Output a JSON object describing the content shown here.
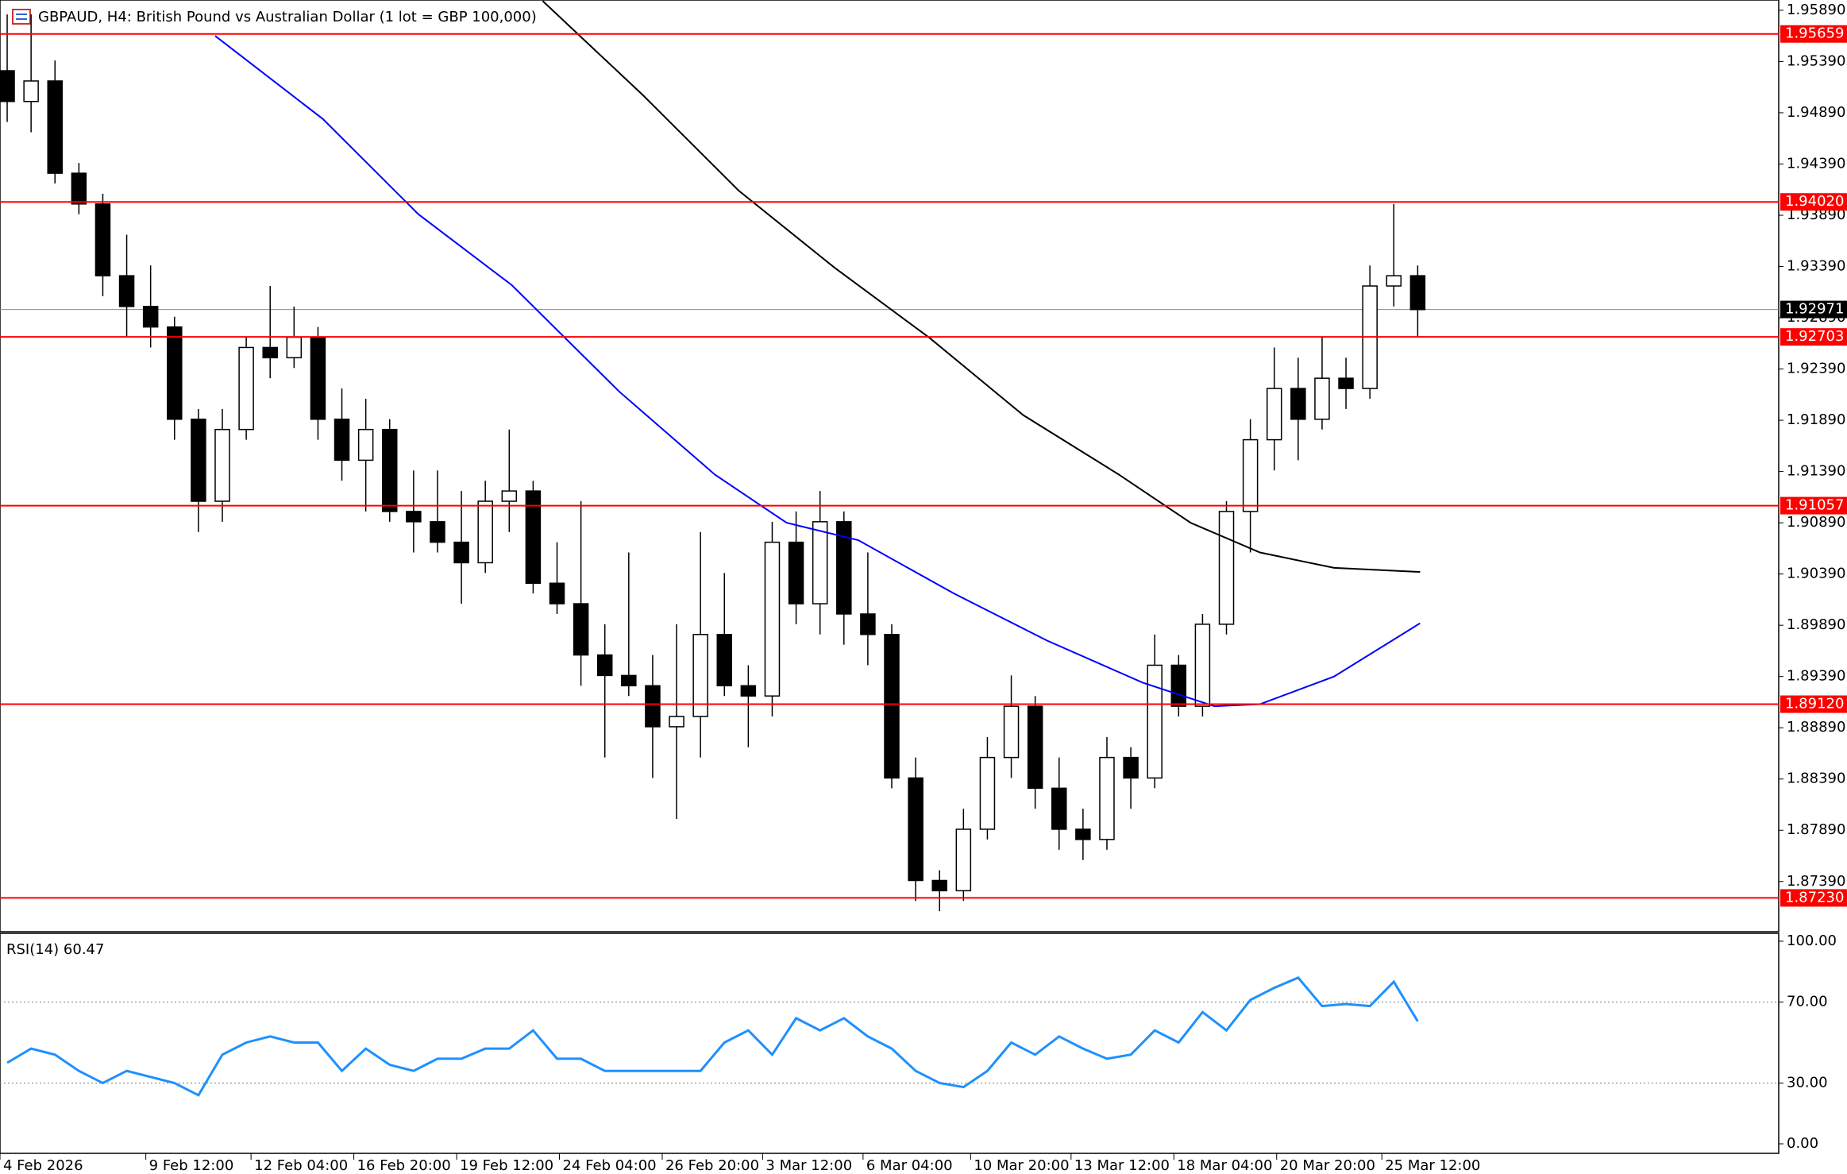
{
  "header": "GBPAUD, H4:  British Pound vs Australian Dollar (1 lot = GBP 100,000)",
  "chart_data": [
    {
      "type": "candlestick",
      "xlim": [
        -0.3,
        74.1
      ],
      "ylim": [
        1.869,
        1.9599
      ],
      "yticks": [
        {
          "value": 1.9589,
          "label": "1.95890"
        },
        {
          "value": 1.9539,
          "label": "1.95390"
        },
        {
          "value": 1.9489,
          "label": "1.94890"
        },
        {
          "value": 1.9439,
          "label": "1.94390"
        },
        {
          "value": 1.9389,
          "label": "1.93890"
        },
        {
          "value": 1.9339,
          "label": "1.93390"
        },
        {
          "value": 1.9289,
          "label": "1.92890"
        },
        {
          "value": 1.9239,
          "label": "1.92390"
        },
        {
          "value": 1.9189,
          "label": "1.91890"
        },
        {
          "value": 1.9139,
          "label": "1.91390"
        },
        {
          "value": 1.9089,
          "label": "1.90890"
        },
        {
          "value": 1.9039,
          "label": "1.90390"
        },
        {
          "value": 1.8989,
          "label": "1.89890"
        },
        {
          "value": 1.8939,
          "label": "1.89390"
        },
        {
          "value": 1.8889,
          "label": "1.88890"
        },
        {
          "value": 1.8839,
          "label": "1.88390"
        },
        {
          "value": 1.8789,
          "label": "1.87890"
        },
        {
          "value": 1.8739,
          "label": "1.87390"
        }
      ],
      "xticks": [
        {
          "value": -0.3,
          "label": "4 Feb 2026"
        },
        {
          "value": 5.8,
          "label": "9 Feb 12:00"
        },
        {
          "value": 10.2,
          "label": "12 Feb 04:00"
        },
        {
          "value": 14.5,
          "label": "16 Feb 20:00"
        },
        {
          "value": 18.8,
          "label": "19 Feb 12:00"
        },
        {
          "value": 23.1,
          "label": "24 Feb 04:00"
        },
        {
          "value": 27.4,
          "label": "26 Feb 20:00"
        },
        {
          "value": 31.6,
          "label": "3 Mar 12:00"
        },
        {
          "value": 35.8,
          "label": "6 Mar 04:00"
        },
        {
          "value": 40.3,
          "label": "10 Mar 20:00"
        },
        {
          "value": 44.5,
          "label": "13 Mar 12:00"
        },
        {
          "value": 48.8,
          "label": "18 Mar 04:00"
        },
        {
          "value": 53.1,
          "label": "20 Mar 20:00"
        },
        {
          "value": 57.5,
          "label": "25 Mar 12:00"
        }
      ],
      "open": [
        1.953,
        1.95,
        1.952,
        1.943,
        1.94,
        1.933,
        1.93,
        1.928,
        1.919,
        1.911,
        1.918,
        1.926,
        1.925,
        1.927,
        1.919,
        1.915,
        1.918,
        1.91,
        1.909,
        1.907,
        1.905,
        1.911,
        1.912,
        1.903,
        1.901,
        1.896,
        1.894,
        1.893,
        1.889,
        1.89,
        1.898,
        1.893,
        1.892,
        1.907,
        1.901,
        1.909,
        1.9,
        1.898,
        1.884,
        1.874,
        1.873,
        1.879,
        1.886,
        1.891,
        1.883,
        1.879,
        1.878,
        1.886,
        1.884,
        1.895,
        1.891,
        1.899,
        1.91,
        1.917,
        1.922,
        1.919,
        1.923,
        1.922,
        1.932,
        1.933
      ],
      "high": [
        1.9585,
        1.9585,
        1.954,
        1.944,
        1.941,
        1.937,
        1.934,
        1.929,
        1.92,
        1.92,
        1.927,
        1.932,
        1.93,
        1.928,
        1.922,
        1.921,
        1.919,
        1.914,
        1.914,
        1.912,
        1.913,
        1.918,
        1.913,
        1.907,
        1.911,
        1.899,
        1.906,
        1.896,
        1.899,
        1.908,
        1.904,
        1.895,
        1.909,
        1.91,
        1.912,
        1.91,
        1.906,
        1.899,
        1.886,
        1.875,
        1.881,
        1.888,
        1.894,
        1.892,
        1.886,
        1.881,
        1.888,
        1.887,
        1.898,
        1.896,
        1.9,
        1.911,
        1.919,
        1.926,
        1.925,
        1.927,
        1.925,
        1.934,
        1.94,
        1.934
      ],
      "low": [
        1.948,
        1.947,
        1.942,
        1.939,
        1.931,
        1.927,
        1.926,
        1.917,
        1.908,
        1.909,
        1.917,
        1.923,
        1.924,
        1.917,
        1.913,
        1.91,
        1.909,
        1.906,
        1.906,
        1.901,
        1.904,
        1.908,
        1.902,
        1.9,
        1.893,
        1.886,
        1.892,
        1.884,
        1.88,
        1.886,
        1.892,
        1.887,
        1.89,
        1.899,
        1.898,
        1.897,
        1.895,
        1.883,
        1.872,
        1.871,
        1.872,
        1.878,
        1.884,
        1.881,
        1.877,
        1.876,
        1.877,
        1.881,
        1.883,
        1.89,
        1.89,
        1.898,
        1.906,
        1.914,
        1.915,
        1.918,
        1.92,
        1.921,
        1.93,
        1.927
      ],
      "close": [
        1.95,
        1.952,
        1.943,
        1.94,
        1.933,
        1.93,
        1.928,
        1.919,
        1.911,
        1.918,
        1.926,
        1.925,
        1.927,
        1.919,
        1.915,
        1.918,
        1.91,
        1.909,
        1.907,
        1.905,
        1.911,
        1.912,
        1.903,
        1.901,
        1.896,
        1.894,
        1.893,
        1.889,
        1.89,
        1.898,
        1.893,
        1.892,
        1.907,
        1.901,
        1.909,
        1.9,
        1.898,
        1.884,
        1.874,
        1.873,
        1.879,
        1.886,
        1.891,
        1.883,
        1.879,
        1.878,
        1.886,
        1.884,
        1.895,
        1.891,
        1.899,
        1.91,
        1.917,
        1.922,
        1.919,
        1.923,
        1.922,
        1.932,
        1.933,
        1.9297
      ],
      "up_color": "#ffffff",
      "down_color": "#000000",
      "lines": [
        {
          "color": "#0000ff",
          "x": [
            8.7,
            13.2,
            17.2,
            21.1,
            25.6,
            29.6,
            32.6,
            35.6,
            39.6,
            43.5,
            47.5,
            50.5,
            52.4,
            55.5,
            59.1
          ],
          "values": [
            1.9564,
            1.9483,
            1.939,
            1.9321,
            1.9217,
            1.9136,
            1.9089,
            1.9072,
            1.902,
            1.8974,
            1.8933,
            1.891,
            1.8912,
            1.8939,
            1.8991
          ]
        },
        {
          "color": "#000000",
          "x": [
            22.4,
            26.6,
            30.6,
            34.6,
            38.6,
            42.5,
            46.5,
            49.5,
            52.4,
            55.5,
            59.1
          ],
          "values": [
            1.9598,
            1.9506,
            1.9413,
            1.9338,
            1.9269,
            1.9194,
            1.9136,
            1.9089,
            1.906,
            1.9045,
            1.9041
          ]
        }
      ],
      "level_color": "#ff0000",
      "levels": [
        {
          "value": 1.95659,
          "label": "1.95659"
        },
        {
          "value": 1.9402,
          "label": "1.94020"
        },
        {
          "value": 1.92703,
          "label": "1.92703"
        },
        {
          "value": 1.91057,
          "label": "1.91057"
        },
        {
          "value": 1.8912,
          "label": "1.89120"
        },
        {
          "value": 1.8723,
          "label": "1.87230"
        }
      ],
      "last_price": {
        "value": 1.92971,
        "label": "1.92971"
      }
    },
    {
      "type": "line",
      "title": "RSI(14) 60.47",
      "color": "#1e90ff",
      "ylim": [
        -4.7,
        103.9
      ],
      "yticks": [
        {
          "value": 100,
          "label": "100.00"
        },
        {
          "value": 70,
          "label": "70.00"
        },
        {
          "value": 30,
          "label": "30.00"
        },
        {
          "value": 0,
          "label": "0.00"
        }
      ],
      "values": [
        40,
        47,
        44,
        36,
        30,
        36,
        33,
        30,
        24,
        44,
        50,
        53,
        50,
        50,
        36,
        47,
        39,
        36,
        42,
        42,
        47,
        47,
        56,
        42,
        42,
        36,
        36,
        36,
        36,
        36,
        50,
        56,
        44,
        62,
        56,
        62,
        53,
        47,
        36,
        30,
        28,
        36,
        50,
        44,
        53,
        47,
        42,
        44,
        56,
        50,
        65,
        56,
        71,
        77,
        82,
        68,
        69,
        68,
        80,
        60.47
      ]
    }
  ]
}
